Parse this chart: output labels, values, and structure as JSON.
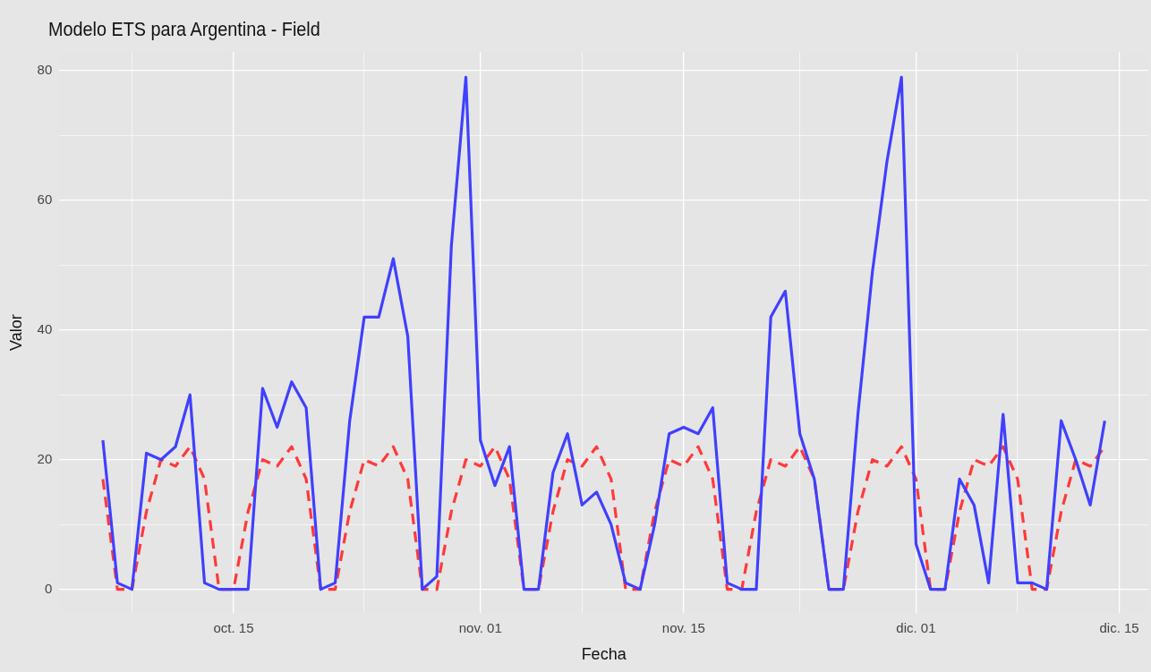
{
  "chart_data": {
    "type": "line",
    "title": "Modelo ETS para Argentina - Field",
    "xlabel": "Fecha",
    "ylabel": "Valor",
    "x": [
      "--10-06",
      "--10-07",
      "--10-08",
      "--10-09",
      "--10-10",
      "--10-11",
      "--10-12",
      "--10-13",
      "--10-14",
      "--10-15",
      "--10-16",
      "--10-17",
      "--10-18",
      "--10-19",
      "--10-20",
      "--10-21",
      "--10-22",
      "--10-23",
      "--10-24",
      "--10-25",
      "--10-26",
      "--10-27",
      "--10-28",
      "--10-29",
      "--10-30",
      "--10-31",
      "--11-01",
      "--11-02",
      "--11-03",
      "--11-04",
      "--11-05",
      "--11-06",
      "--11-07",
      "--11-08",
      "--11-09",
      "--11-10",
      "--11-11",
      "--11-12",
      "--11-13",
      "--11-14",
      "--11-15",
      "--11-16",
      "--11-17",
      "--11-18",
      "--11-19",
      "--11-20",
      "--11-21",
      "--11-22",
      "--11-23",
      "--11-24",
      "--11-25",
      "--11-26",
      "--11-27",
      "--11-28",
      "--11-29",
      "--11-30",
      "--12-01",
      "--12-02",
      "--12-03",
      "--12-04",
      "--12-05",
      "--12-06",
      "--12-07",
      "--12-08",
      "--12-09",
      "--12-10",
      "--12-11",
      "--12-12",
      "--12-13",
      "--12-14"
    ],
    "series": [
      {
        "color": "#4040ff",
        "line_style": "solid",
        "values": [
          23,
          1,
          0,
          21,
          20,
          22,
          30,
          1,
          0,
          0,
          0,
          31,
          25,
          32,
          28,
          0,
          1,
          26,
          42,
          42,
          51,
          39,
          0,
          2,
          53,
          79,
          23,
          16,
          22,
          0,
          0,
          18,
          24,
          13,
          15,
          10,
          1,
          0,
          10,
          24,
          25,
          24,
          28,
          1,
          0,
          0,
          42,
          46,
          24,
          17,
          0,
          0,
          27,
          49,
          66,
          79,
          7,
          0,
          0,
          17,
          13,
          1,
          27,
          1,
          1,
          0,
          26,
          20,
          13,
          26
        ]
      },
      {
        "color": "#ff3a3a",
        "line_style": "dashed",
        "values": [
          17,
          0,
          0,
          12,
          20,
          19,
          22,
          17,
          0,
          0,
          12,
          20,
          19,
          22,
          17,
          0,
          0,
          12,
          20,
          19,
          22,
          17,
          0,
          0,
          12,
          20,
          19,
          22,
          17,
          0,
          0,
          12,
          20,
          19,
          22,
          17,
          0,
          0,
          12,
          20,
          19,
          22,
          17,
          0,
          0,
          12,
          20,
          19,
          22,
          17,
          0,
          0,
          12,
          20,
          19,
          22,
          17,
          0,
          0,
          12,
          20,
          19,
          22,
          17,
          0,
          0,
          12,
          20,
          19,
          22
        ]
      }
    ],
    "xlim": [
      "--10-03",
      "--12-17"
    ],
    "xticks": [
      {
        "value": "--10-08",
        "label": null
      },
      {
        "value": "--10-15",
        "label": "oct. 15"
      },
      {
        "value": "--10-24",
        "label": null
      },
      {
        "value": "--11-01",
        "label": "nov. 01"
      },
      {
        "value": "--11-08",
        "label": null
      },
      {
        "value": "--11-15",
        "label": "nov. 15"
      },
      {
        "value": "--11-23",
        "label": null
      },
      {
        "value": "--12-01",
        "label": "dic. 01"
      },
      {
        "value": "--12-08",
        "label": null
      },
      {
        "value": "--12-15",
        "label": "dic. 15"
      }
    ],
    "ylim": [
      -3.7,
      82.9
    ],
    "yticks": [
      0,
      {
        "value": 10,
        "label": null
      },
      20,
      {
        "value": 30,
        "label": null
      },
      40,
      {
        "value": 50,
        "label": null
      },
      60,
      {
        "value": 70,
        "label": null
      },
      80
    ],
    "grid": true,
    "marker": "none"
  }
}
